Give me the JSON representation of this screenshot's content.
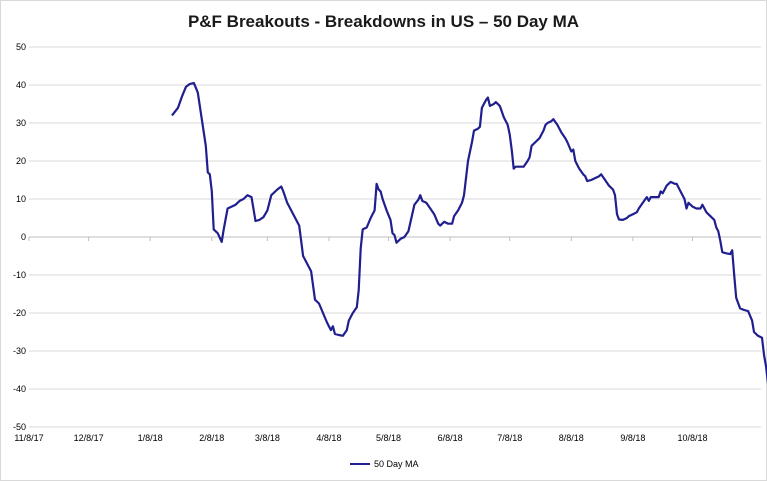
{
  "chart_data": {
    "type": "line",
    "title": "P&F Breakouts - Breakdowns in US – 50 Day MA",
    "xlabel": "",
    "ylabel": "",
    "ylim": [
      -50,
      50
    ],
    "yticks": [
      50,
      40,
      30,
      20,
      10,
      0,
      -10,
      -20,
      -30,
      -40,
      -50
    ],
    "xtick_labels": [
      "11/8/17",
      "12/8/17",
      "1/8/18",
      "2/8/18",
      "3/8/18",
      "4/8/18",
      "5/8/18",
      "6/8/18",
      "7/8/18",
      "8/8/18",
      "9/8/18",
      "10/8/18"
    ],
    "grid": "horizontal",
    "legend_position": "bottom",
    "series": [
      {
        "name": "50 Day MA",
        "color": "#1f1f8f",
        "points": [
          [
            "2018-01-19",
            32
          ],
          [
            "2018-01-22",
            34
          ],
          [
            "2018-01-24",
            37
          ],
          [
            "2018-01-26",
            39.5
          ],
          [
            "2018-01-28",
            40.3
          ],
          [
            "2018-01-30",
            40.5
          ],
          [
            "2018-02-01",
            38
          ],
          [
            "2018-02-03",
            31
          ],
          [
            "2018-02-05",
            24
          ],
          [
            "2018-02-06",
            17
          ],
          [
            "2018-02-07",
            16.5
          ],
          [
            "2018-02-08",
            12
          ],
          [
            "2018-02-09",
            2
          ],
          [
            "2018-02-11",
            1
          ],
          [
            "2018-02-13",
            -1.3
          ],
          [
            "2018-02-14",
            2
          ],
          [
            "2018-02-16",
            7.5
          ],
          [
            "2018-02-18",
            8
          ],
          [
            "2018-02-20",
            8.5
          ],
          [
            "2018-02-22",
            9.5
          ],
          [
            "2018-02-24",
            10
          ],
          [
            "2018-02-26",
            11
          ],
          [
            "2018-02-28",
            10.5
          ],
          [
            "2018-03-02",
            4.2
          ],
          [
            "2018-03-04",
            4.5
          ],
          [
            "2018-03-06",
            5.2
          ],
          [
            "2018-03-08",
            7
          ],
          [
            "2018-03-10",
            11
          ],
          [
            "2018-03-13",
            12.5
          ],
          [
            "2018-03-15",
            13.3
          ],
          [
            "2018-03-16",
            12
          ],
          [
            "2018-03-18",
            9
          ],
          [
            "2018-03-20",
            7
          ],
          [
            "2018-03-22",
            5
          ],
          [
            "2018-03-24",
            3
          ],
          [
            "2018-03-26",
            -5
          ],
          [
            "2018-03-28",
            -7
          ],
          [
            "2018-03-30",
            -9
          ],
          [
            "2018-04-01",
            -16.5
          ],
          [
            "2018-04-03",
            -17.5
          ],
          [
            "2018-04-05",
            -20
          ],
          [
            "2018-04-07",
            -22.5
          ],
          [
            "2018-04-09",
            -24.5
          ],
          [
            "2018-04-10",
            -23.5
          ],
          [
            "2018-04-11",
            -25.5
          ],
          [
            "2018-04-13",
            -25.8
          ],
          [
            "2018-04-15",
            -26
          ],
          [
            "2018-04-17",
            -24.5
          ],
          [
            "2018-04-18",
            -22
          ],
          [
            "2018-04-20",
            -20
          ],
          [
            "2018-04-22",
            -18.5
          ],
          [
            "2018-04-23",
            -14
          ],
          [
            "2018-04-24",
            -3
          ],
          [
            "2018-04-25",
            2
          ],
          [
            "2018-04-27",
            2.5
          ],
          [
            "2018-04-29",
            5
          ],
          [
            "2018-05-01",
            7
          ],
          [
            "2018-05-02",
            14
          ],
          [
            "2018-05-03",
            12.5
          ],
          [
            "2018-05-04",
            12
          ],
          [
            "2018-05-05",
            10
          ],
          [
            "2018-05-07",
            7
          ],
          [
            "2018-05-09",
            4.5
          ],
          [
            "2018-05-10",
            1
          ],
          [
            "2018-05-11",
            0.5
          ],
          [
            "2018-05-12",
            -1.5
          ],
          [
            "2018-05-14",
            -0.5
          ],
          [
            "2018-05-16",
            0
          ],
          [
            "2018-05-18",
            1.5
          ],
          [
            "2018-05-21",
            8.5
          ],
          [
            "2018-05-23",
            9.8
          ],
          [
            "2018-05-24",
            11
          ],
          [
            "2018-05-25",
            9.5
          ],
          [
            "2018-05-27",
            9
          ],
          [
            "2018-05-29",
            7.5
          ],
          [
            "2018-05-31",
            6
          ],
          [
            "2018-06-02",
            3.5
          ],
          [
            "2018-06-03",
            3
          ],
          [
            "2018-06-05",
            4
          ],
          [
            "2018-06-07",
            3.5
          ],
          [
            "2018-06-09",
            3.5
          ],
          [
            "2018-06-10",
            5.5
          ],
          [
            "2018-06-12",
            7
          ],
          [
            "2018-06-14",
            9
          ],
          [
            "2018-06-15",
            11
          ],
          [
            "2018-06-17",
            20
          ],
          [
            "2018-06-19",
            25
          ],
          [
            "2018-06-20",
            28
          ],
          [
            "2018-06-22",
            28.5
          ],
          [
            "2018-06-23",
            29
          ],
          [
            "2018-06-24",
            34
          ],
          [
            "2018-06-26",
            36
          ],
          [
            "2018-06-27",
            36.7
          ],
          [
            "2018-06-28",
            34.5
          ],
          [
            "2018-06-30",
            35
          ],
          [
            "2018-07-01",
            35.5
          ],
          [
            "2018-07-03",
            34.5
          ],
          [
            "2018-07-05",
            31.5
          ],
          [
            "2018-07-07",
            29.5
          ],
          [
            "2018-07-08",
            27
          ],
          [
            "2018-07-09",
            23
          ],
          [
            "2018-07-10",
            18
          ],
          [
            "2018-07-11",
            18.5
          ],
          [
            "2018-07-13",
            18.5
          ],
          [
            "2018-07-15",
            18.5
          ],
          [
            "2018-07-17",
            20
          ],
          [
            "2018-07-18",
            21
          ],
          [
            "2018-07-19",
            24
          ],
          [
            "2018-07-21",
            25
          ],
          [
            "2018-07-23",
            26
          ],
          [
            "2018-07-24",
            27
          ],
          [
            "2018-07-25",
            28
          ],
          [
            "2018-07-26",
            29.5
          ],
          [
            "2018-07-27",
            30
          ],
          [
            "2018-07-29",
            30.5
          ],
          [
            "2018-07-30",
            31
          ],
          [
            "2018-08-01",
            29.5
          ],
          [
            "2018-08-03",
            27.5
          ],
          [
            "2018-08-05",
            26
          ],
          [
            "2018-08-06",
            25
          ],
          [
            "2018-08-08",
            22.5
          ],
          [
            "2018-08-09",
            23
          ],
          [
            "2018-08-10",
            20
          ],
          [
            "2018-08-12",
            18
          ],
          [
            "2018-08-14",
            16.5
          ],
          [
            "2018-08-15",
            16
          ],
          [
            "2018-08-16",
            14.7
          ],
          [
            "2018-08-18",
            15
          ],
          [
            "2018-08-20",
            15.5
          ],
          [
            "2018-08-22",
            16
          ],
          [
            "2018-08-23",
            16.5
          ],
          [
            "2018-08-25",
            15
          ],
          [
            "2018-08-27",
            13.5
          ],
          [
            "2018-08-29",
            12.5
          ],
          [
            "2018-08-30",
            11
          ],
          [
            "2018-08-31",
            6
          ],
          [
            "2018-09-01",
            4.6
          ],
          [
            "2018-09-03",
            4.5
          ],
          [
            "2018-09-05",
            5
          ],
          [
            "2018-09-06",
            5.5
          ],
          [
            "2018-09-08",
            6
          ],
          [
            "2018-09-10",
            6.5
          ],
          [
            "2018-09-11",
            7.5
          ],
          [
            "2018-09-13",
            9
          ],
          [
            "2018-09-15",
            10.5
          ],
          [
            "2018-09-16",
            9.5
          ],
          [
            "2018-09-17",
            10.5
          ],
          [
            "2018-09-19",
            10.5
          ],
          [
            "2018-09-21",
            10.5
          ],
          [
            "2018-09-22",
            12
          ],
          [
            "2018-09-23",
            11.5
          ],
          [
            "2018-09-25",
            13.5
          ],
          [
            "2018-09-27",
            14.5
          ],
          [
            "2018-09-29",
            14
          ],
          [
            "2018-09-30",
            14
          ],
          [
            "2018-10-02",
            12
          ],
          [
            "2018-10-04",
            10
          ],
          [
            "2018-10-05",
            7.5
          ],
          [
            "2018-10-06",
            9
          ],
          [
            "2018-10-08",
            8
          ],
          [
            "2018-10-10",
            7.5
          ],
          [
            "2018-10-12",
            7.5
          ],
          [
            "2018-10-13",
            8.5
          ],
          [
            "2018-10-15",
            6.5
          ],
          [
            "2018-10-17",
            5.5
          ],
          [
            "2018-10-19",
            4.5
          ],
          [
            "2018-10-20",
            2.5
          ],
          [
            "2018-10-21",
            1.5
          ],
          [
            "2018-10-22",
            -1
          ],
          [
            "2018-10-23",
            -4
          ],
          [
            "2018-10-25",
            -4.3
          ],
          [
            "2018-10-27",
            -4.5
          ],
          [
            "2018-10-28",
            -3.5
          ],
          [
            "2018-10-29",
            -10
          ],
          [
            "2018-10-30",
            -16
          ],
          [
            "2018-11-01",
            -18.8
          ],
          [
            "2018-11-03",
            -19.2
          ],
          [
            "2018-11-05",
            -19.5
          ],
          [
            "2018-11-07",
            -22
          ],
          [
            "2018-11-08",
            -25
          ],
          [
            "2018-11-10",
            -26
          ],
          [
            "2018-11-12",
            -26.5
          ],
          [
            "2018-11-13",
            -31
          ],
          [
            "2018-11-14",
            -34
          ],
          [
            "2018-11-15",
            -38.5
          ],
          [
            "2018-11-16",
            -37
          ],
          [
            "2018-11-17",
            -38
          ],
          [
            "2018-11-18",
            -41.5
          ]
        ]
      }
    ]
  }
}
